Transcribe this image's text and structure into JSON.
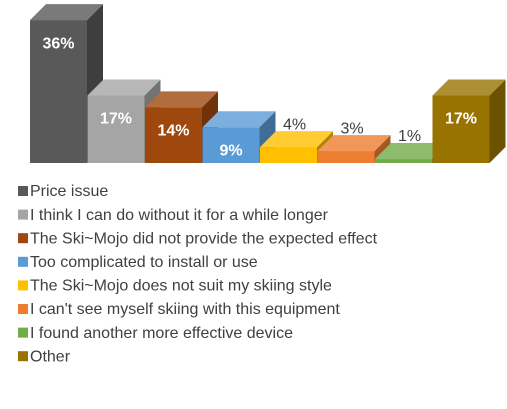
{
  "chart_data": {
    "type": "bar3d",
    "categories": [
      "Price issue",
      "I think I can do without it for a while longer",
      "The Ski~Mojo did not provide the expected effect",
      "Too complicated to install or use",
      "The Ski~Mojo does not suit my skiing style",
      "I can't see myself skiing with this equipment",
      "I found another more effective device",
      "Other"
    ],
    "values": [
      36,
      17,
      14,
      9,
      4,
      3,
      1,
      17
    ],
    "value_labels": [
      "36%",
      "17%",
      "14%",
      "9%",
      "4%",
      "3%",
      "1%",
      "17%"
    ],
    "colors": [
      "#595959",
      "#a5a5a5",
      "#9e480e",
      "#5b9bd5",
      "#ffc000",
      "#ed7d31",
      "#70ad47",
      "#997300"
    ],
    "legend": "bottom"
  }
}
